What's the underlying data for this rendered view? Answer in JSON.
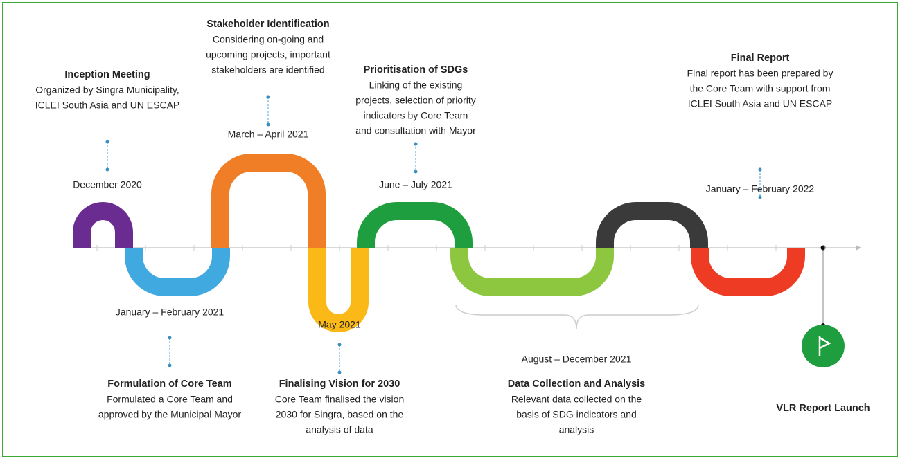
{
  "milestones": [
    {
      "title": "Inception Meeting",
      "description": [
        "Organized by Singra Municipality,",
        "ICLEI South Asia and UN ESCAP"
      ],
      "date": "December 2020"
    },
    {
      "title": "Formulation of Core Team",
      "description": [
        "Formulated a Core Team and",
        "approved by the Municipal Mayor"
      ],
      "date": "January – February 2021"
    },
    {
      "title": "Stakeholder Identification",
      "description": [
        "Considering on-going and",
        "upcoming projects, important",
        "stakeholders are identified"
      ],
      "date": "March – April 2021"
    },
    {
      "title": "Finalising Vision for 2030",
      "description": [
        "Core Team finalised the vision",
        "2030 for Singra, based on the",
        "analysis of data"
      ],
      "date": "May 2021"
    },
    {
      "title": "Prioritisation of SDGs",
      "description": [
        "Linking of the existing",
        "projects, selection of priority",
        "indicators by Core Team",
        "and consultation with Mayor"
      ],
      "date": "June – July 2021"
    },
    {
      "title": "Data Collection and Analysis",
      "description": [
        "Relevant data collected on the",
        "basis of SDG indicators and",
        "analysis"
      ],
      "date": "August – December 2021"
    },
    {
      "title": "Final Report",
      "description": [
        "Final report has been prepared by",
        "the Core Team with support from",
        "ICLEI South Asia and UN ESCAP"
      ],
      "date": "January – February 2022"
    }
  ],
  "launch": {
    "title": "VLR Report Launch"
  }
}
